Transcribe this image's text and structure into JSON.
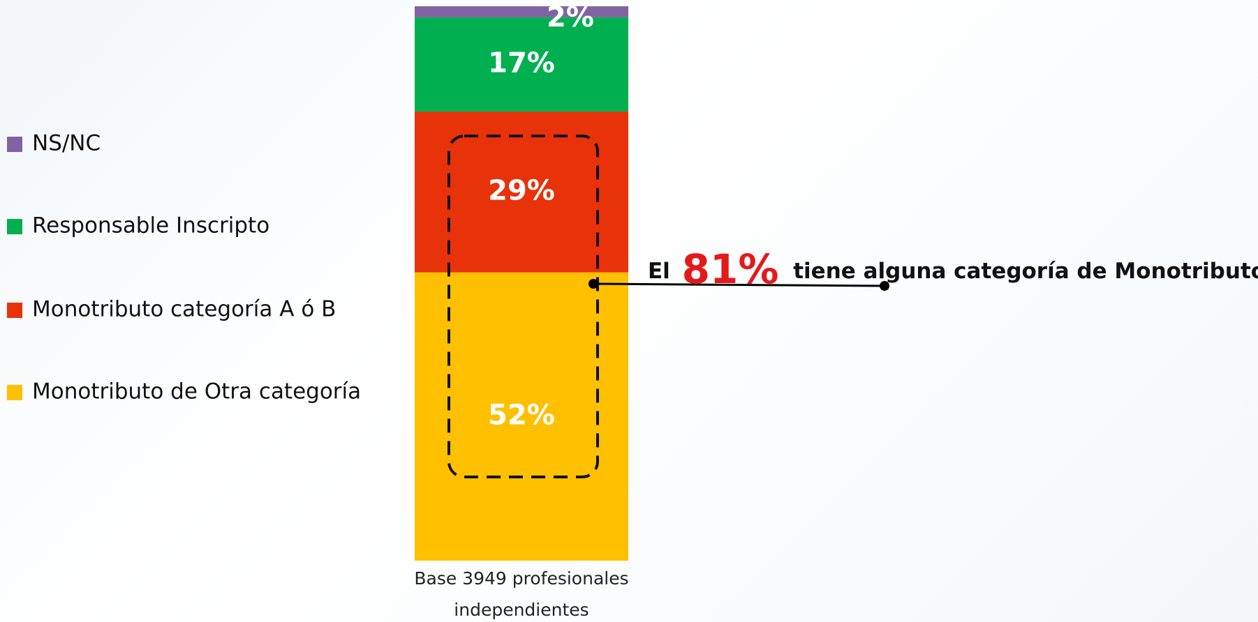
{
  "chart_data": {
    "type": "bar",
    "stacked": true,
    "categories": [
      "Base 3949 profesionales independientes"
    ],
    "series": [
      {
        "name": "Monotributo de Otra categoría",
        "color": "#ffc000",
        "values": [
          52
        ],
        "value_labels": [
          "52%"
        ]
      },
      {
        "name": "Monotributo categoría A ó B",
        "color": "#e8320a",
        "values": [
          29
        ],
        "value_labels": [
          "29%"
        ]
      },
      {
        "name": "Responsable Inscripto",
        "color": "#00b050",
        "values": [
          17
        ],
        "value_labels": [
          "17%"
        ]
      },
      {
        "name": "NS/NC",
        "color": "#8064a2",
        "values": [
          2
        ],
        "value_labels": [
          "2%"
        ]
      }
    ],
    "annotation": {
      "prefix": "El",
      "highlight": "81%",
      "suffix": "tiene alguna categoría de Monotributo",
      "highlight_color": "#e31a1c"
    }
  }
}
